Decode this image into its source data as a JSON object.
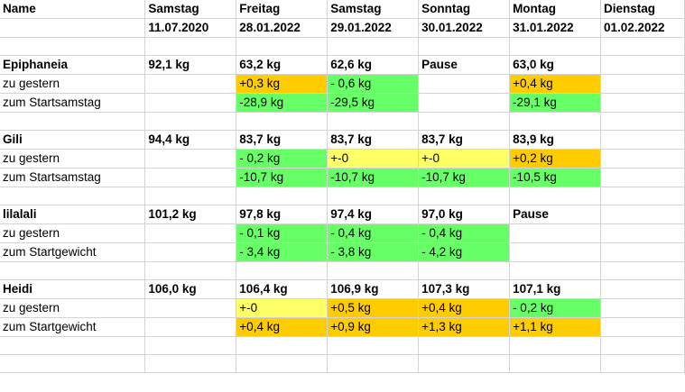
{
  "header": [
    "Name",
    "Samstag",
    "Freitag",
    "Samstag",
    "Sonntag",
    "Montag",
    "Dienstag"
  ],
  "dates": [
    "",
    "11.07.2020",
    "28.01.2022",
    "29.01.2022",
    "30.01.2022",
    "31.01.2022",
    "01.02.2022"
  ],
  "colors": {
    "green": "#66ff66",
    "orange": "#ffcc00",
    "yellow": "#ffff66"
  },
  "people": [
    {
      "name": "Epiphaneia",
      "weights": [
        "92,1 kg",
        "63,2 kg",
        "62,6 kg",
        "Pause",
        "63,0 kg",
        ""
      ],
      "rows": [
        {
          "label": "zu gestern",
          "cells": [
            {
              "text": "",
              "color": ""
            },
            {
              "text": "+0,3 kg",
              "color": "orange"
            },
            {
              "text": "- 0,6 kg",
              "color": "green"
            },
            {
              "text": "",
              "color": ""
            },
            {
              "text": "+0,4 kg",
              "color": "orange"
            },
            {
              "text": "",
              "color": ""
            }
          ]
        },
        {
          "label": "zum Startsamstag",
          "cells": [
            {
              "text": "",
              "color": ""
            },
            {
              "text": "-28,9 kg",
              "color": "green"
            },
            {
              "text": "-29,5 kg",
              "color": "green"
            },
            {
              "text": "",
              "color": ""
            },
            {
              "text": "-29,1 kg",
              "color": "green"
            },
            {
              "text": "",
              "color": ""
            }
          ]
        }
      ]
    },
    {
      "name": "Gili",
      "weights": [
        "94,4 kg",
        "83,7 kg",
        "83,7 kg",
        "83,7 kg",
        "83,9 kg",
        ""
      ],
      "rows": [
        {
          "label": "zu gestern",
          "cells": [
            {
              "text": "",
              "color": ""
            },
            {
              "text": "- 0,2 kg",
              "color": "green"
            },
            {
              "text": "+-0",
              "color": "yellow"
            },
            {
              "text": "+-0",
              "color": "yellow"
            },
            {
              "text": "+0,2 kg",
              "color": "orange"
            },
            {
              "text": "",
              "color": ""
            }
          ]
        },
        {
          "label": "zum Startsamstag",
          "cells": [
            {
              "text": "",
              "color": ""
            },
            {
              "text": "-10,7 kg",
              "color": "green"
            },
            {
              "text": "-10,7 kg",
              "color": "green"
            },
            {
              "text": "-10,7 kg",
              "color": "green"
            },
            {
              "text": "-10,5 kg",
              "color": "green"
            },
            {
              "text": "",
              "color": ""
            }
          ]
        }
      ]
    },
    {
      "name": "lilalali",
      "weights": [
        "101,2 kg",
        "97,8 kg",
        "97,4 kg",
        "97,0 kg",
        "Pause",
        ""
      ],
      "rows": [
        {
          "label": "zu gestern",
          "cells": [
            {
              "text": "",
              "color": ""
            },
            {
              "text": "- 0,1 kg",
              "color": "green"
            },
            {
              "text": "- 0,4 kg",
              "color": "green"
            },
            {
              "text": "- 0,4 kg",
              "color": "green"
            },
            {
              "text": "",
              "color": ""
            },
            {
              "text": "",
              "color": ""
            }
          ]
        },
        {
          "label": "zum Startgewicht",
          "cells": [
            {
              "text": "",
              "color": ""
            },
            {
              "text": "- 3,4 kg",
              "color": "green"
            },
            {
              "text": "- 3,8 kg",
              "color": "green"
            },
            {
              "text": "- 4,2 kg",
              "color": "green"
            },
            {
              "text": "",
              "color": ""
            },
            {
              "text": "",
              "color": ""
            }
          ]
        }
      ]
    },
    {
      "name": "Heidi",
      "weights": [
        "106,0 kg",
        "106,4 kg",
        "106,9 kg",
        "107,3 kg",
        "107,1 kg",
        ""
      ],
      "rows": [
        {
          "label": "zu gestern",
          "cells": [
            {
              "text": "",
              "color": ""
            },
            {
              "text": "+-0",
              "color": "yellow"
            },
            {
              "text": "+0,5 kg",
              "color": "orange"
            },
            {
              "text": "+0,4 kg",
              "color": "orange"
            },
            {
              "text": "- 0,2 kg",
              "color": "green"
            },
            {
              "text": "",
              "color": ""
            }
          ]
        },
        {
          "label": "zum Startgewicht",
          "cells": [
            {
              "text": "",
              "color": ""
            },
            {
              "text": "+0,4 kg",
              "color": "orange"
            },
            {
              "text": "+0,9 kg",
              "color": "orange"
            },
            {
              "text": "+1,3 kg",
              "color": "orange"
            },
            {
              "text": "+1,1 kg",
              "color": "orange"
            },
            {
              "text": "",
              "color": ""
            }
          ]
        }
      ]
    }
  ]
}
